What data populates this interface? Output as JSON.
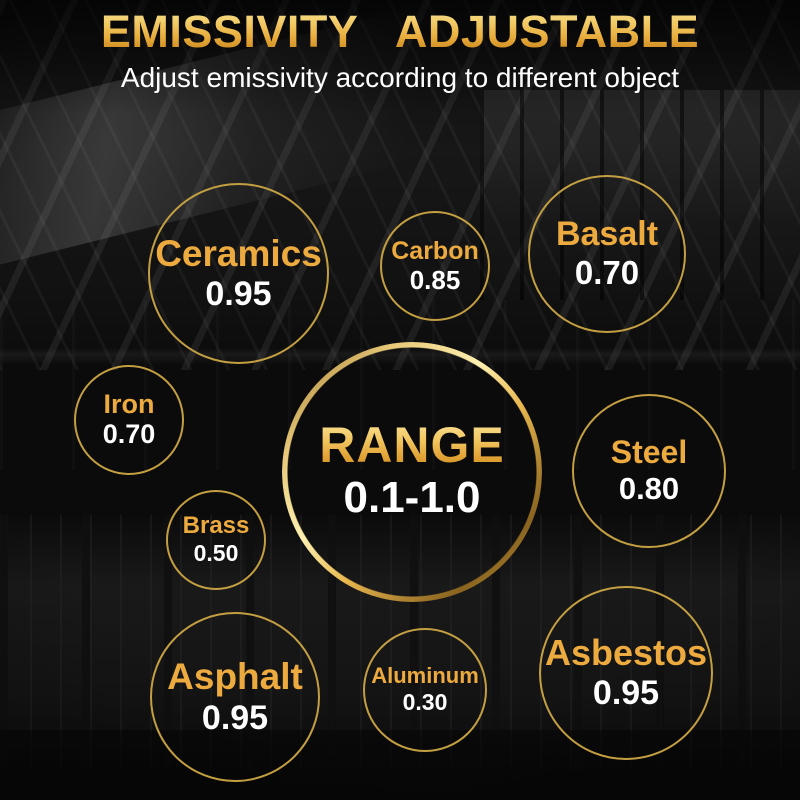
{
  "header": {
    "title": "EMISSIVITY ADJUSTABLE",
    "subtitle": "Adjust emissivity according to different object"
  },
  "range_circle": {
    "label": "RANGE",
    "value": "0.1-1.0"
  },
  "materials": [
    {
      "id": "ceramics",
      "name": "Ceramics",
      "value": "0.95"
    },
    {
      "id": "carbon",
      "name": "Carbon",
      "value": "0.85"
    },
    {
      "id": "basalt",
      "name": "Basalt",
      "value": "0.70"
    },
    {
      "id": "iron",
      "name": "Iron",
      "value": "0.70"
    },
    {
      "id": "steel",
      "name": "Steel",
      "value": "0.80"
    },
    {
      "id": "brass",
      "name": "Brass",
      "value": "0.50"
    },
    {
      "id": "asphalt",
      "name": "Asphalt",
      "value": "0.95"
    },
    {
      "id": "aluminum",
      "name": "Aluminum",
      "value": "0.30"
    },
    {
      "id": "asbestos",
      "name": "Asbestos",
      "value": "0.95"
    }
  ],
  "colors": {
    "gold_text": "#EDAA3E",
    "gold_gradient_light": "#F8E59B",
    "gold_gradient_dark": "#C07F1C",
    "circle_border": "#C49F42",
    "value_text": "#FFFFFF",
    "background": "#0B0B0B"
  }
}
